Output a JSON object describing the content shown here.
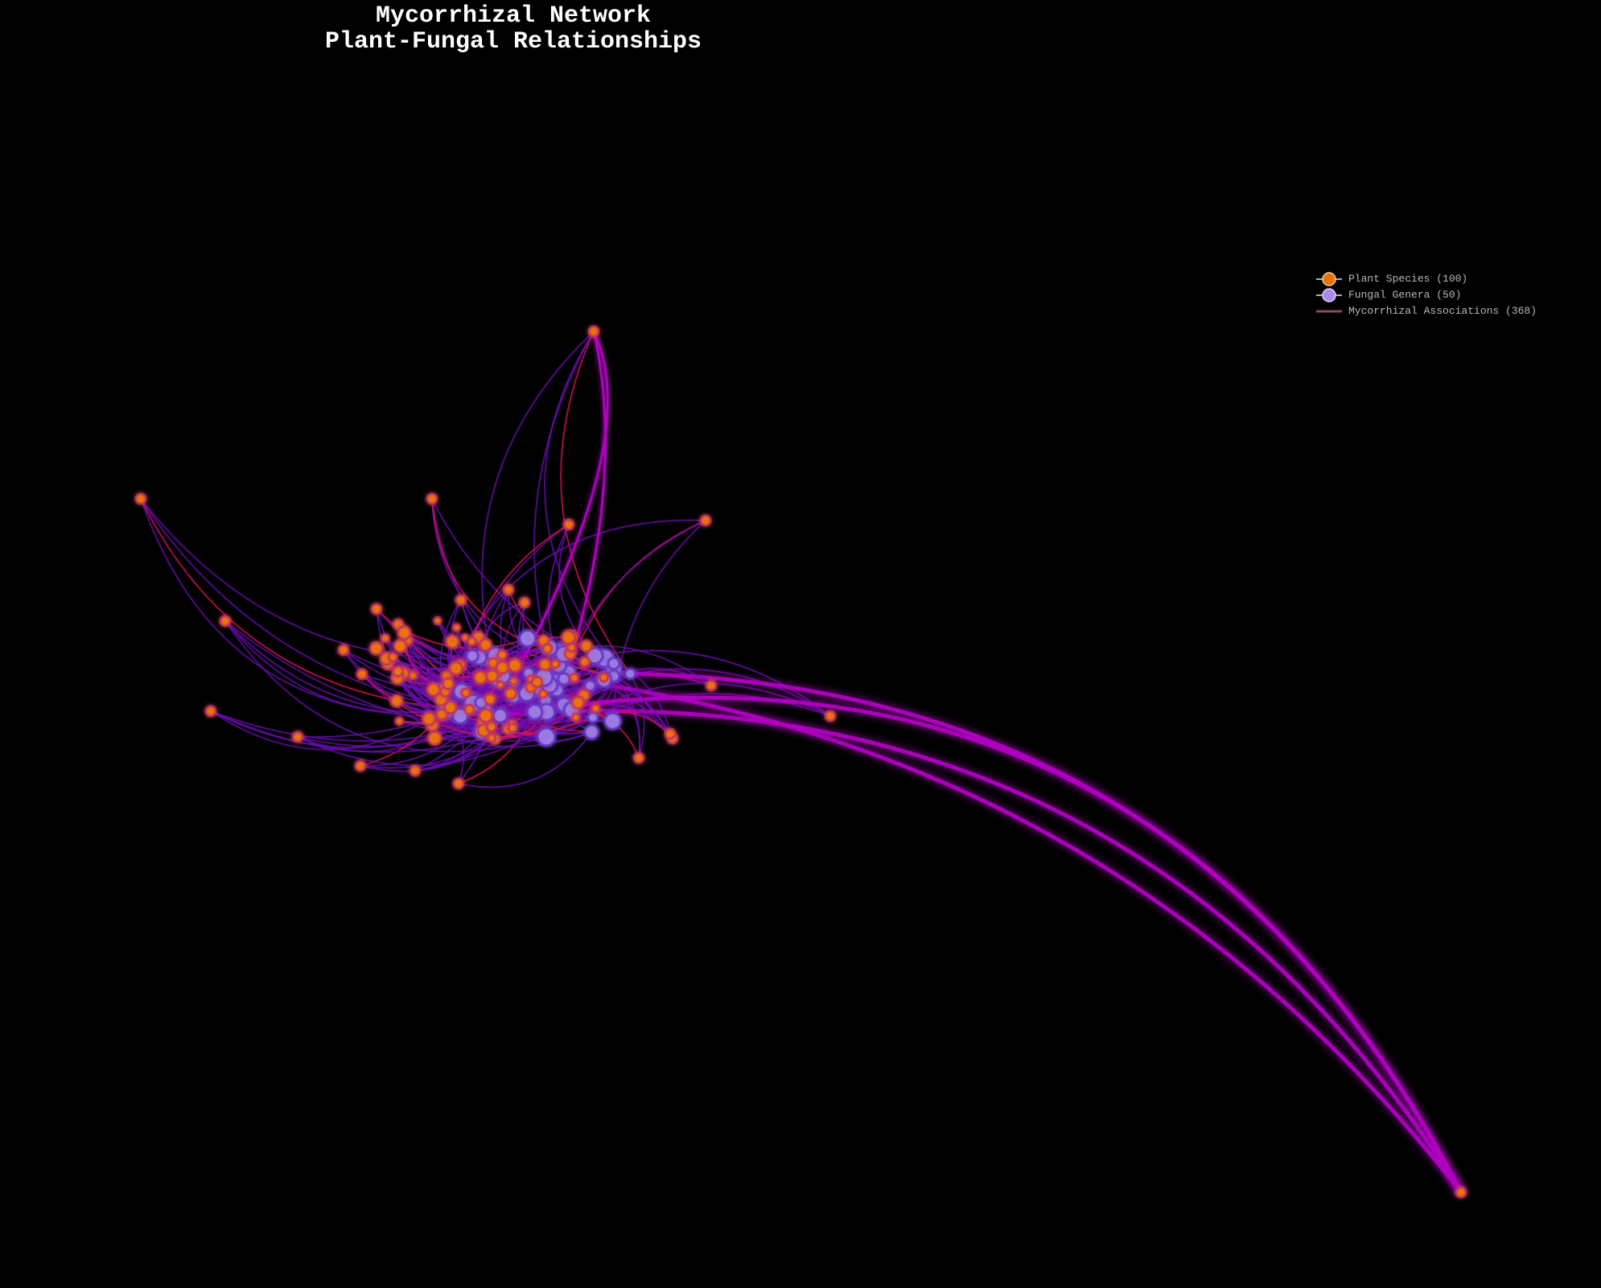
{
  "title": {
    "line1": "Mycorrhizal Network",
    "line2": "Plant-Fungal Relationships"
  },
  "legend": [
    {
      "label": "Plant Species (100)",
      "marker": "plant-node-icon"
    },
    {
      "label": "Fungal Genera (50)",
      "marker": "fungus-node-icon"
    },
    {
      "label": "Mycorrhizal Associations (368)",
      "marker": "edge-line-icon"
    }
  ],
  "colors": {
    "background": "#000000",
    "plant_fill": "#e8730c",
    "plant_glow": "#c03060",
    "fungus_fill": "#9a7ae0",
    "fungus_glow": "#6030c0",
    "edge_primary": "#6a0db0",
    "edge_secondary": "#e0105a",
    "edge_long": "#b000c0"
  },
  "chart_data": {
    "type": "network",
    "title": "Mycorrhizal Network\nPlant-Fungal Relationships",
    "node_groups": [
      {
        "name": "Plant Species",
        "count": 100
      },
      {
        "name": "Fungal Genera",
        "count": 50
      }
    ],
    "edge_count": 368,
    "legend_position": "top-right",
    "grid": false
  }
}
